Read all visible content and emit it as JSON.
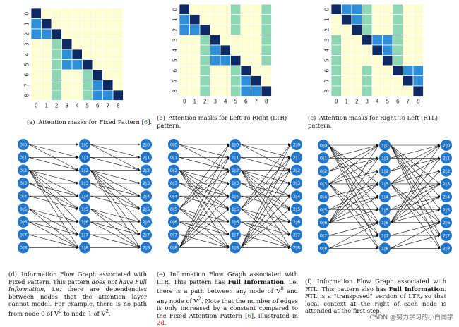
{
  "heatmap_colors": {
    "empty": "#fdfdd2",
    "attend": "#8fd6b4",
    "diag": "#0f2a63",
    "mid": "#2e8ed8",
    "dark": "#1b3f86"
  },
  "node_color": "#2176c9",
  "ticks": [
    "0",
    "1",
    "2",
    "3",
    "4",
    "5",
    "6",
    "7",
    "8"
  ],
  "node_layers": [
    [
      "0|0",
      "0|1",
      "0|2",
      "0|3",
      "0|4",
      "0|5",
      "0|6",
      "0|7",
      "0|8"
    ],
    [
      "1|0",
      "1|1",
      "1|2",
      "1|3",
      "1|4",
      "1|5",
      "1|6",
      "1|7",
      "1|8"
    ],
    [
      "2|0",
      "2|1",
      "2|2",
      "2|3",
      "2|4",
      "2|5",
      "2|6",
      "2|7",
      "2|8"
    ]
  ],
  "captions": {
    "a": {
      "label": "(a)",
      "text": "Attention masks for Fixed Pattern [",
      "ref": "6",
      "end": "]."
    },
    "b": {
      "label": "(b)",
      "text": "Attention masks for Left To Right (LTR) pattern."
    },
    "c": {
      "label": "(c)",
      "text": "Attention masks for Right To Left (RTL) pattern."
    },
    "d": {
      "label": "(d)",
      "p1": "Information Flow Graph associated with Fixed Pattern.  This pattern ",
      "em": "does not have Full Information",
      "p2": ", i.e. there are dependencies between nodes that the attention layer cannot model. For example, there is no path from node 0 of V",
      "sup0": "0",
      "p3": " to node 1 of V",
      "sup2": "2",
      "p4": "."
    },
    "e": {
      "label": "(e)",
      "p1": "Information Flow Graph associated with LTR. This pattern has ",
      "bold": "Full Information",
      "p2": ", i.e. there is a path between any node of V",
      "sup0": "0",
      "p3": " and any node of V",
      "sup2": "2",
      "p4": ".  Note that the number of edges is only increased by a constant compared to the Fixed Attention Pattern [",
      "ref1": "6",
      "p5": "], illustrated in ",
      "ref2": "2d",
      "p6": "."
    },
    "f": {
      "label": "(f)",
      "p1": "Information Flow Graph associated with RTL. This pattern also has ",
      "bold": "Full Information",
      "p2": ". RTL is a \"transposed\" version of LTR, so that local context at the right of each node is attended at the first step."
    }
  },
  "watermark": "CSDN @努力学习的小白同学"
}
